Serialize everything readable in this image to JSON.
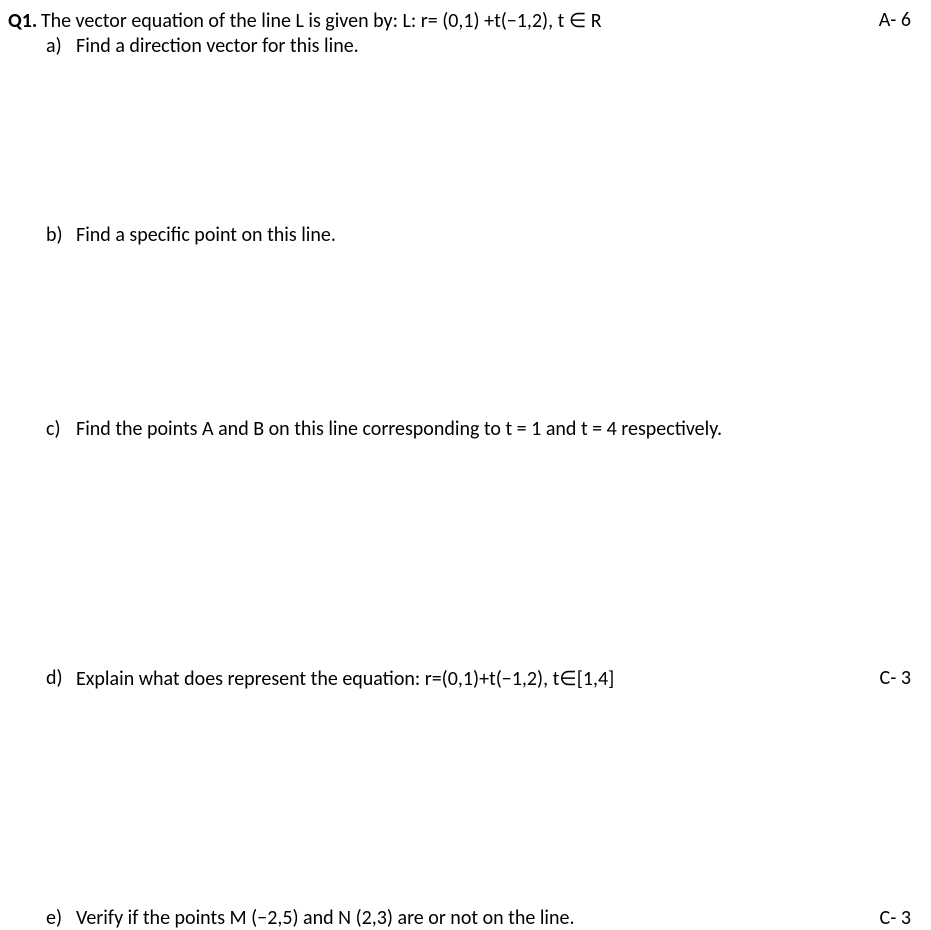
{
  "question": {
    "label": "Q1.",
    "text": "The vector equation of the line L is given by: L: r= (0,1) +t(−1,2), t ∈ R",
    "marks": "A- 6"
  },
  "parts": {
    "a": {
      "label": "a)",
      "text": "Find a direction vector for this line.",
      "marks": ""
    },
    "b": {
      "label": "b)",
      "text": "Find a specific point on this line.",
      "marks": ""
    },
    "c": {
      "label": "c)",
      "text": "Find the points A and B on this line corresponding to t = 1 and t = 4 respectively.",
      "marks": ""
    },
    "d": {
      "label": "d)",
      "text": "Explain what does represent the equation: r=(0,1)+t(−1,2), t∈[1,4]",
      "marks": "C- 3"
    },
    "e": {
      "label": "e)",
      "text": "Verify if the points M (−2,5) and N (2,3) are or not on the line.",
      "marks": "C- 3"
    }
  },
  "colors": {
    "background": "#ffffff",
    "text": "#000000"
  },
  "typography": {
    "font_family": "Calibri",
    "font_size": 20,
    "label_weight": "bold"
  }
}
